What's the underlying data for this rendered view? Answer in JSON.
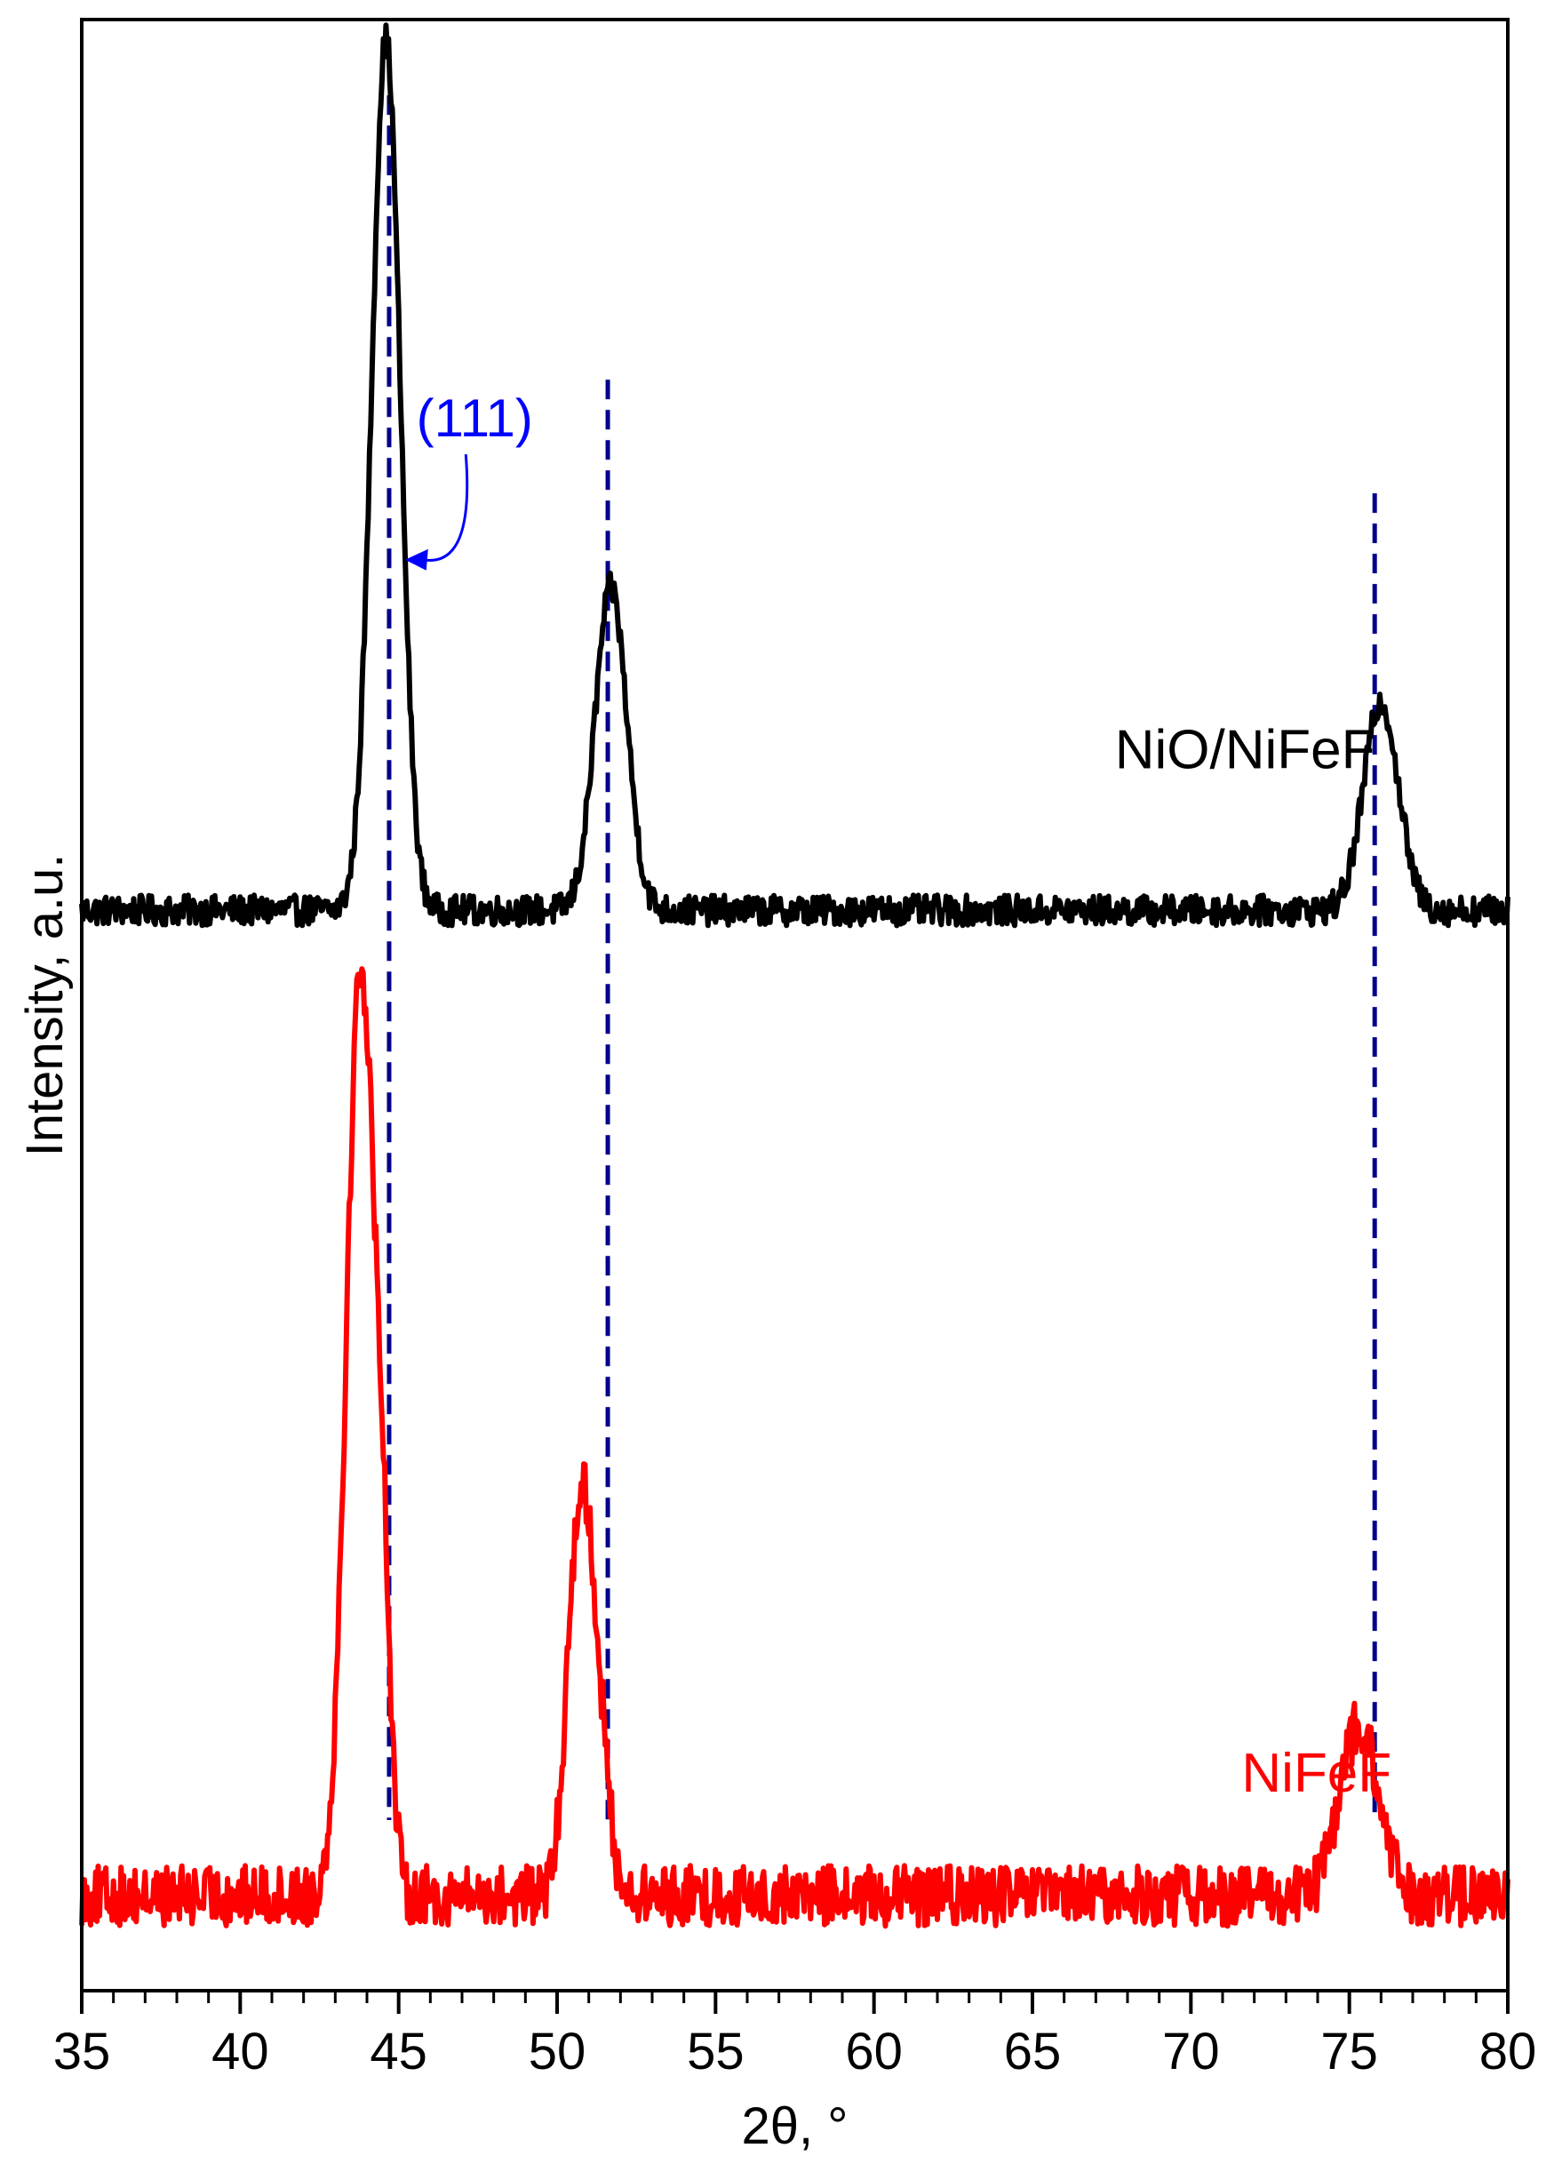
{
  "chart_data": {
    "type": "line",
    "title": "",
    "xlabel": "2θ, °",
    "ylabel": "Intensity, a.u.",
    "xlim": [
      35,
      80
    ],
    "ylim": [
      0,
      1.04
    ],
    "x_ticks": [
      35,
      40,
      45,
      50,
      55,
      60,
      65,
      70,
      75,
      80
    ],
    "x_tick_labels": [
      "35",
      "40",
      "45",
      "50",
      "55",
      "60",
      "65",
      "70",
      "75",
      "80"
    ],
    "y_ticks_shown": false,
    "grid": false,
    "series": [
      {
        "name": "NiO/NiFeF",
        "color": "#000000",
        "baseline": 0.57,
        "noise": 0.008,
        "peaks": [
          {
            "x": 44.6,
            "height": 0.46,
            "width": 0.45
          },
          {
            "x": 51.7,
            "height": 0.17,
            "width": 0.5
          },
          {
            "x": 76.0,
            "height": 0.11,
            "width": 0.55
          }
        ]
      },
      {
        "name": "NiFeF",
        "color": "#ff0000",
        "baseline": 0.05,
        "noise": 0.016,
        "peaks": [
          {
            "x": 43.8,
            "height": 0.49,
            "width": 0.45
          },
          {
            "x": 44.5,
            "height": 0.1,
            "width": 0.25
          },
          {
            "x": 50.6,
            "height": 0.14,
            "width": 0.35
          },
          {
            "x": 51.1,
            "height": 0.13,
            "width": 0.4
          },
          {
            "x": 75.3,
            "height": 0.09,
            "width": 0.6
          }
        ]
      }
    ],
    "reference_lines": {
      "color": "#00008b",
      "lines": [
        {
          "x": 44.7,
          "y_top": 1.0
        },
        {
          "x": 51.6,
          "y_top": 0.85
        },
        {
          "x": 75.8,
          "y_top": 0.79
        }
      ]
    },
    "annotations": [
      {
        "text": "(111)",
        "color": "#0000ff",
        "x": 47.4,
        "y": 0.82
      }
    ]
  }
}
